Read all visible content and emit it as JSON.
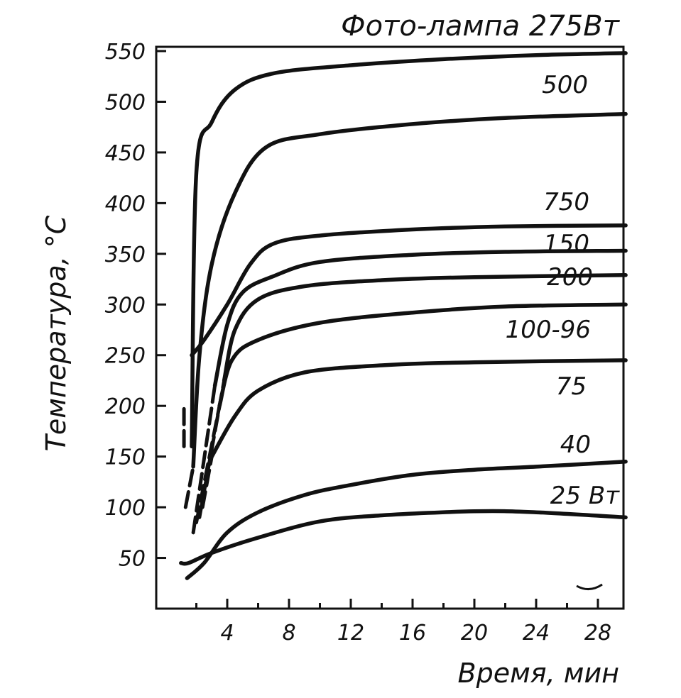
{
  "chart_data": {
    "type": "line",
    "title": "Фото-лампа 275Вт",
    "xlabel": "Время, мин",
    "ylabel": "Температура, °С",
    "xlim": [
      0,
      30
    ],
    "ylim": [
      0,
      550
    ],
    "x_ticks": [
      4,
      8,
      12,
      16,
      20,
      24,
      28
    ],
    "y_ticks": [
      50,
      100,
      150,
      200,
      250,
      300,
      350,
      400,
      450,
      500,
      550
    ],
    "grid": false,
    "series": [
      {
        "name": "",
        "lead": [
          [
            1.2,
            160
          ],
          [
            1.2,
            200
          ]
        ],
        "points": [
          [
            1.7,
            160
          ],
          [
            2.0,
            430
          ],
          [
            3.0,
            480
          ],
          [
            4.5,
            512
          ],
          [
            7,
            528
          ],
          [
            12,
            536
          ],
          [
            18,
            542
          ],
          [
            24,
            546
          ],
          [
            29.8,
            548
          ]
        ]
      },
      {
        "name": "500",
        "lead": [
          [
            1.3,
            100
          ],
          [
            1.8,
            140
          ]
        ],
        "points": [
          [
            1.8,
            140
          ],
          [
            2.2,
            250
          ],
          [
            3.0,
            340
          ],
          [
            4.5,
            410
          ],
          [
            6.5,
            455
          ],
          [
            10,
            468
          ],
          [
            16,
            478
          ],
          [
            22,
            484
          ],
          [
            29.8,
            488
          ]
        ]
      },
      {
        "name": "750",
        "lead": [],
        "points": [
          [
            1.7,
            250
          ],
          [
            2.5,
            265
          ],
          [
            4,
            300
          ],
          [
            5.5,
            340
          ],
          [
            7,
            360
          ],
          [
            10,
            368
          ],
          [
            16,
            374
          ],
          [
            22,
            377
          ],
          [
            29.8,
            378
          ]
        ]
      },
      {
        "name": "150",
        "lead": [
          [
            1.8,
            75
          ],
          [
            3.2,
            220
          ]
        ],
        "points": [
          [
            3.2,
            220
          ],
          [
            4,
            280
          ],
          [
            5,
            312
          ],
          [
            7,
            328
          ],
          [
            10,
            342
          ],
          [
            16,
            349
          ],
          [
            22,
            352
          ],
          [
            29.8,
            353
          ]
        ]
      },
      {
        "name": "200",
        "lead": [
          [
            2.2,
            90
          ],
          [
            3.8,
            225
          ]
        ],
        "points": [
          [
            3.8,
            225
          ],
          [
            4.5,
            275
          ],
          [
            6,
            305
          ],
          [
            9,
            318
          ],
          [
            14,
            324
          ],
          [
            20,
            327
          ],
          [
            29.8,
            329
          ]
        ]
      },
      {
        "name": "100-96",
        "lead": [
          [
            2.0,
            85
          ],
          [
            3.5,
            200
          ]
        ],
        "points": [
          [
            3.5,
            200
          ],
          [
            4.3,
            245
          ],
          [
            6,
            265
          ],
          [
            10,
            282
          ],
          [
            16,
            292
          ],
          [
            22,
            298
          ],
          [
            29.8,
            300
          ]
        ]
      },
      {
        "name": "75",
        "lead": [
          [
            2.4,
            100
          ],
          [
            3.0,
            150
          ]
        ],
        "points": [
          [
            3.0,
            150
          ],
          [
            4.5,
            190
          ],
          [
            6,
            215
          ],
          [
            9,
            233
          ],
          [
            14,
            240
          ],
          [
            20,
            243
          ],
          [
            29.8,
            245
          ]
        ]
      },
      {
        "name": "40",
        "lead": [],
        "points": [
          [
            1.4,
            30
          ],
          [
            2.5,
            45
          ],
          [
            4,
            75
          ],
          [
            6,
            95
          ],
          [
            9,
            112
          ],
          [
            12,
            122
          ],
          [
            16,
            132
          ],
          [
            20,
            137
          ],
          [
            24,
            140
          ],
          [
            29.8,
            145
          ]
        ]
      },
      {
        "name": "25 Вт",
        "lead": [],
        "points": [
          [
            1.0,
            45
          ],
          [
            1.5,
            45
          ],
          [
            3,
            55
          ],
          [
            6,
            70
          ],
          [
            10,
            86
          ],
          [
            14,
            92
          ],
          [
            20,
            96
          ],
          [
            24,
            95
          ],
          [
            29.8,
            90
          ]
        ]
      }
    ]
  }
}
